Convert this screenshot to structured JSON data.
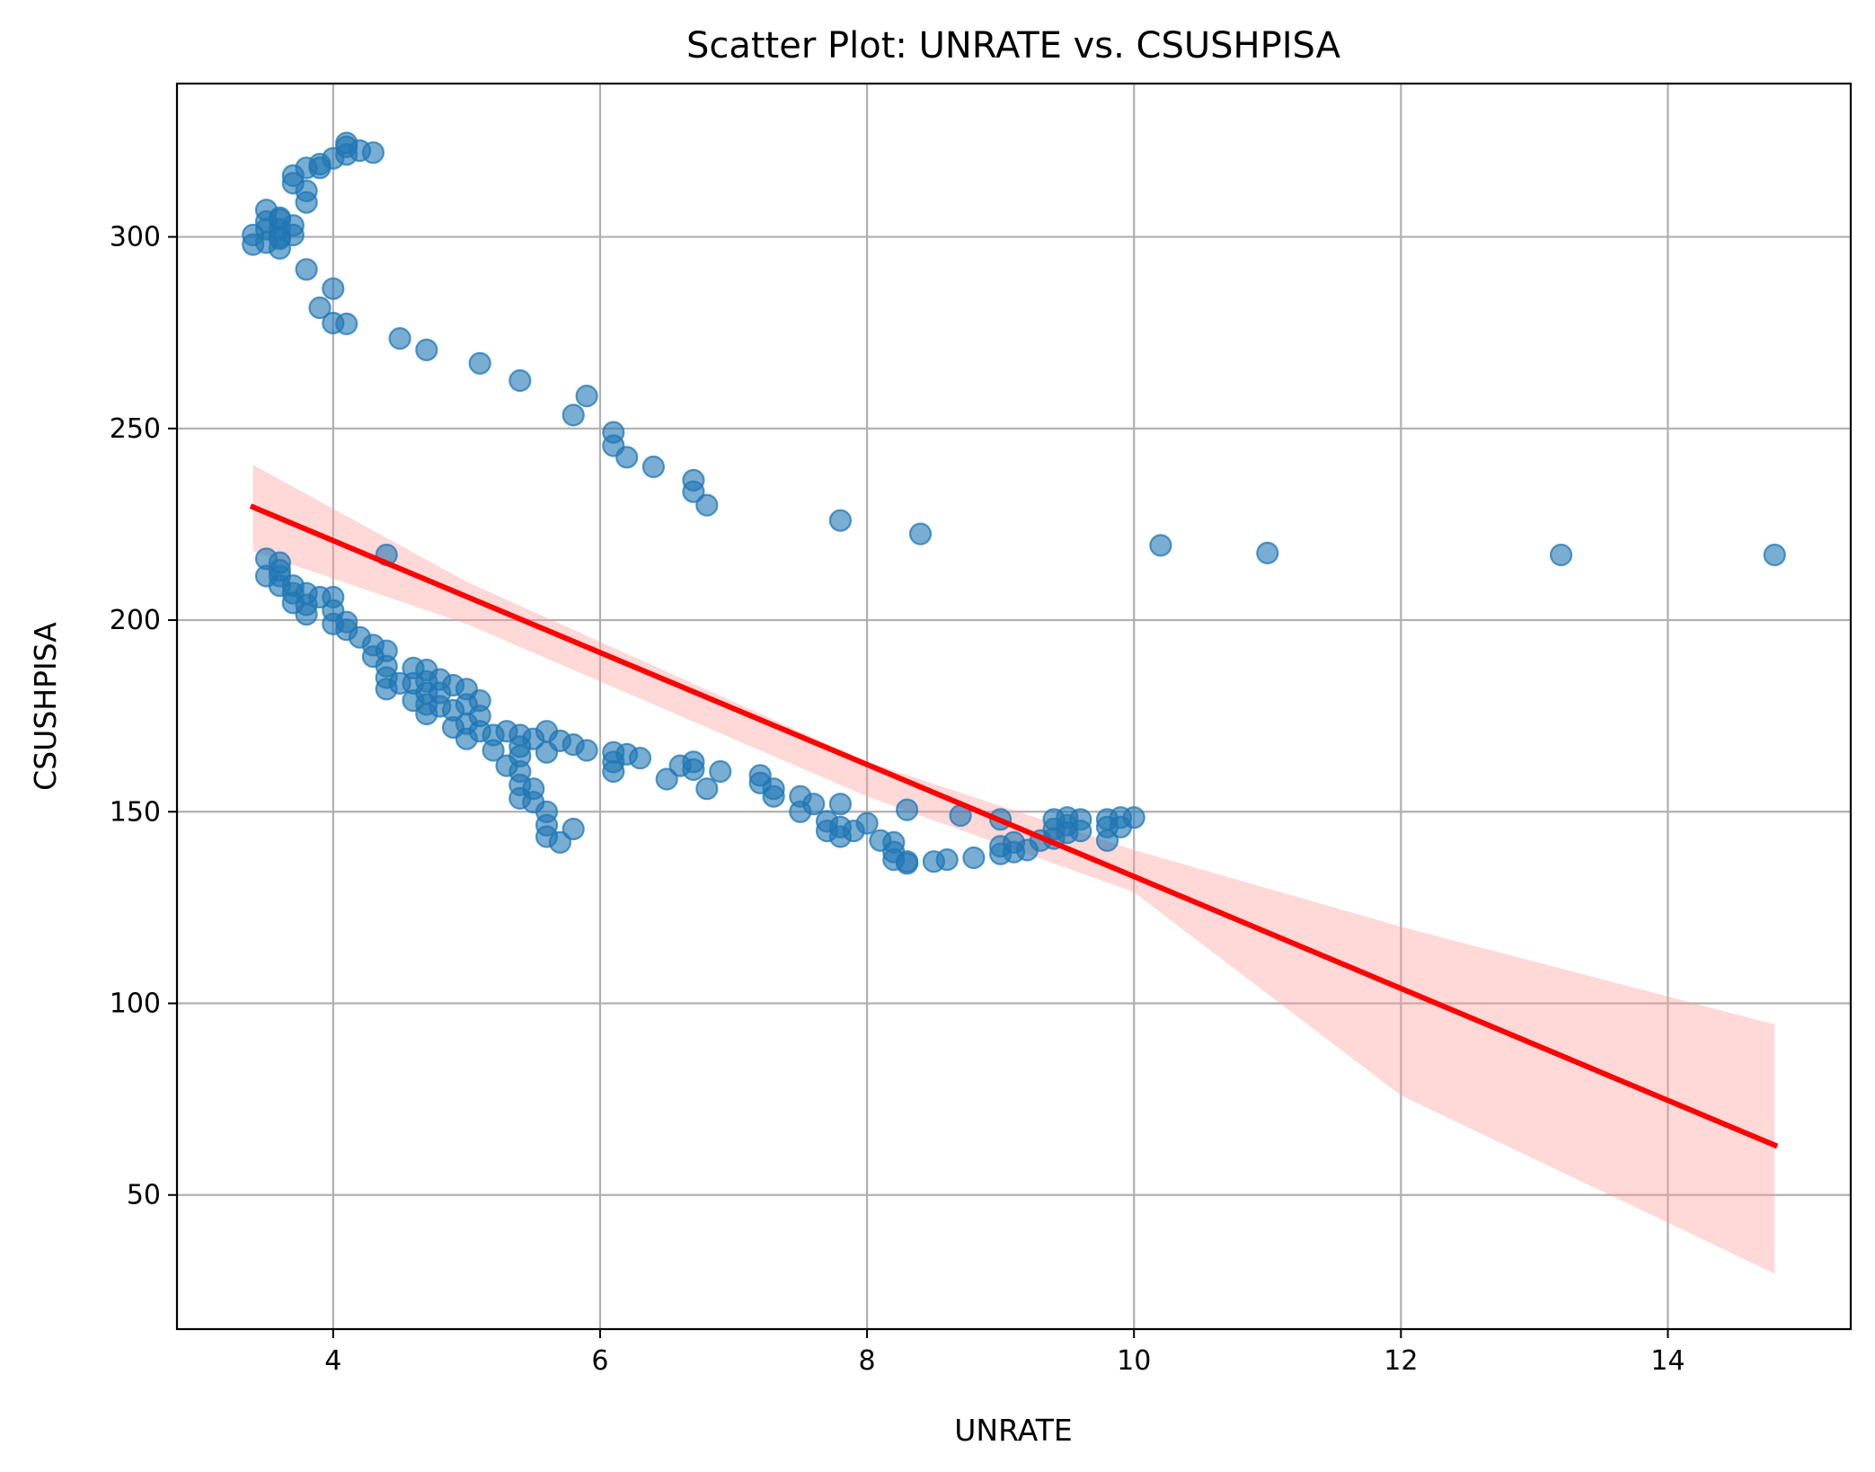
{
  "chart_data": {
    "type": "scatter",
    "title": "Scatter Plot: UNRATE vs. CSUSHPISA",
    "xlabel": "UNRATE",
    "ylabel": "CSUSHPISA",
    "xlim": [
      2.83,
      15.37
    ],
    "ylim": [
      15.0,
      340.0
    ],
    "xticks": [
      4,
      6,
      8,
      10,
      12,
      14
    ],
    "yticks": [
      50,
      100,
      150,
      200,
      250,
      300
    ],
    "grid": true,
    "legend": "none",
    "colors": {
      "points": "#1f77b4",
      "point_opacity": 0.6,
      "regression_line": "#ff0000",
      "confidence_band": "#ff9999",
      "confidence_opacity": 0.38
    },
    "regression": {
      "x": [
        3.4,
        14.8
      ],
      "y": [
        229.5,
        63.0
      ],
      "ci_upper": [
        [
          3.4,
          240.5
        ],
        [
          5.0,
          210.0
        ],
        [
          8.0,
          163.0
        ],
        [
          10.0,
          140.0
        ],
        [
          12.0,
          120.0
        ],
        [
          14.8,
          94.5
        ]
      ],
      "ci_lower": [
        [
          14.8,
          29.5
        ],
        [
          12.0,
          76.0
        ],
        [
          10.0,
          129.0
        ],
        [
          8.0,
          154.0
        ],
        [
          5.0,
          199.0
        ],
        [
          3.4,
          218.0
        ]
      ]
    },
    "series": [
      {
        "x": [
          3.4,
          3.4,
          3.5,
          3.5,
          3.5,
          3.5,
          3.6,
          3.6,
          3.6,
          3.6,
          3.6,
          3.6,
          3.7,
          3.7,
          3.7,
          3.7,
          3.8,
          3.8,
          3.8,
          3.9,
          3.9,
          4.0,
          4.1,
          4.1,
          4.2,
          4.3,
          4.1,
          4.0,
          3.8,
          3.9,
          4.0,
          4.1,
          4.5,
          4.7,
          5.1,
          5.4,
          5.8,
          5.9,
          6.1,
          6.1,
          6.2,
          6.4,
          6.7,
          6.7,
          6.8,
          7.8,
          8.4,
          10.2,
          11.0,
          13.2,
          14.8,
          4.4,
          3.5,
          3.5,
          3.6,
          3.6,
          3.6,
          3.6,
          3.7,
          3.7,
          3.7,
          3.8,
          3.8,
          3.8,
          3.9,
          4.0,
          4.0,
          4.0,
          4.1,
          4.1,
          4.2,
          4.3,
          4.3,
          4.4,
          4.4,
          4.4,
          4.4,
          4.5,
          4.6,
          4.6,
          4.6,
          4.7,
          4.7,
          4.7,
          4.7,
          4.7,
          4.8,
          4.8,
          4.8,
          4.9,
          4.9,
          4.9,
          5.0,
          5.0,
          5.0,
          5.0,
          5.1,
          5.1,
          5.1,
          5.2,
          5.2,
          5.3,
          5.3,
          5.4,
          5.4,
          5.4,
          5.4,
          5.4,
          5.4,
          5.5,
          5.5,
          5.6,
          5.6,
          5.6,
          5.6,
          5.7,
          5.8,
          5.5,
          5.6,
          5.7,
          5.8,
          5.9,
          6.1,
          6.1,
          6.1,
          6.2,
          6.3,
          6.5,
          6.6,
          6.7,
          6.7,
          6.8,
          6.9,
          7.2,
          7.2,
          7.3,
          7.3,
          7.5,
          7.5,
          7.6,
          7.7,
          7.7,
          7.8,
          7.8,
          7.8,
          7.9,
          8.0,
          8.1,
          8.2,
          8.2,
          8.2,
          8.3,
          8.3,
          8.3,
          8.5,
          8.6,
          8.7,
          8.8,
          9.0,
          9.0,
          9.0,
          9.1,
          9.1,
          9.2,
          9.3,
          9.4,
          9.4,
          9.4,
          9.5,
          9.5,
          9.5,
          9.6,
          9.6,
          9.8,
          9.8,
          9.8,
          9.9,
          9.9,
          10.0
        ],
        "y": [
          298,
          300.5,
          298.5,
          302,
          304,
          307,
          297,
          299.5,
          302,
          304.5,
          300,
          305,
          300.5,
          303,
          314,
          316,
          309,
          312,
          318,
          318,
          319,
          320.5,
          321.5,
          323.5,
          322.5,
          322,
          324.5,
          286.5,
          291.5,
          281.5,
          277.5,
          277.3,
          273.5,
          270.5,
          267,
          262.5,
          253.5,
          258.5,
          249,
          245.5,
          242.5,
          240,
          236.5,
          233.5,
          230,
          226,
          222.5,
          219.5,
          217.5,
          217,
          217,
          217,
          211.5,
          216,
          209,
          211.5,
          215,
          213,
          204.5,
          207,
          209,
          201.5,
          204,
          207,
          206,
          199,
          202.5,
          206,
          197.5,
          199.5,
          195.5,
          190.5,
          193.5,
          182,
          185,
          188,
          192,
          183.5,
          179,
          183.5,
          187.5,
          175.5,
          178,
          181,
          184,
          187,
          177.5,
          181,
          184.5,
          172,
          176.5,
          183,
          169,
          173,
          178,
          182,
          171,
          175,
          179,
          166,
          170,
          162,
          171,
          153.5,
          157,
          160.5,
          164.5,
          167,
          170,
          152.5,
          156,
          143.5,
          146.5,
          150,
          165.5,
          142,
          145.5,
          169,
          171,
          168.5,
          167.5,
          166,
          160.5,
          163,
          165.5,
          165,
          164,
          158.5,
          162,
          161,
          163,
          156,
          160.5,
          157.5,
          159.5,
          154,
          156,
          150,
          154,
          152,
          145,
          147.5,
          143.5,
          146,
          152,
          145,
          147,
          142.5,
          137.5,
          139.5,
          142,
          136.5,
          137,
          150.5,
          137,
          137.5,
          149,
          138,
          139,
          141,
          148,
          139.5,
          142,
          140,
          142.5,
          143,
          145.5,
          148,
          144.5,
          146.5,
          148.5,
          145,
          148,
          142.5,
          146,
          148,
          146,
          148.5,
          148.5
        ]
      }
    ]
  }
}
